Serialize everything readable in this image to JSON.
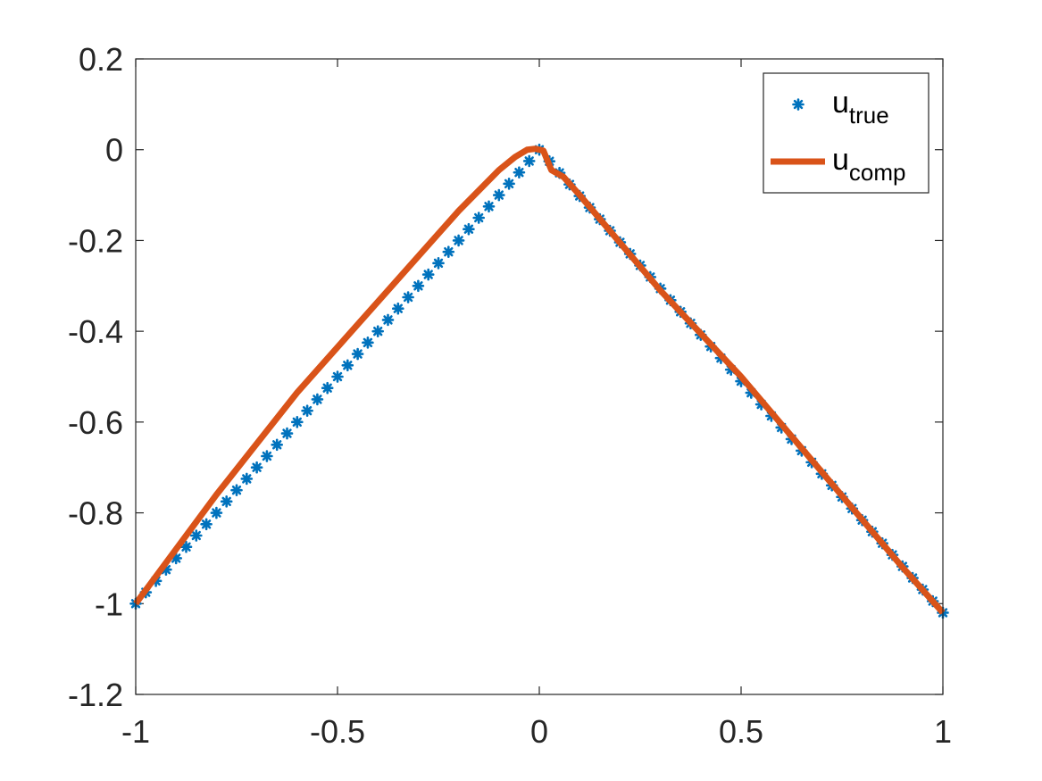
{
  "chart_data": {
    "type": "line",
    "title": "",
    "xlabel": "",
    "ylabel": "",
    "xlim": [
      -1,
      1
    ],
    "ylim": [
      -1.2,
      0.2
    ],
    "xticks": [
      "-1",
      "-0.5",
      "0",
      "0.5",
      "1"
    ],
    "xtick_values": [
      -1,
      -0.5,
      0,
      0.5,
      1
    ],
    "yticks": [
      "0.2",
      "0",
      "-0.2",
      "-0.4",
      "-0.6",
      "-0.8",
      "-1",
      "-1.2"
    ],
    "ytick_values": [
      0.2,
      0,
      -0.2,
      -0.4,
      -0.6,
      -0.8,
      -1,
      -1.2
    ],
    "grid": false,
    "legend_position": "top-right",
    "series": [
      {
        "name": "u_true",
        "legend_main": "u",
        "legend_sub": "true",
        "style": "markers",
        "marker": "asterisk",
        "color": "#0072BD",
        "function": "piecewise linear: y = x for x <= 0, y = -1.02*x for x > 0",
        "x_start": -1,
        "x_end": 1,
        "num_points": 81
      },
      {
        "name": "u_comp",
        "legend_main": "u",
        "legend_sub": "comp",
        "style": "line",
        "color": "#D95319",
        "x": [
          -1,
          -0.8,
          -0.6,
          -0.4,
          -0.2,
          -0.1,
          -0.06,
          -0.03,
          -0.01,
          0.01,
          0.03,
          0.06,
          0.1,
          0.3,
          0.5,
          0.7,
          0.9,
          1
        ],
        "y": [
          -1,
          -0.76,
          -0.535,
          -0.335,
          -0.135,
          -0.045,
          -0.016,
          0.0,
          0.002,
          -0.002,
          -0.045,
          -0.06,
          -0.1,
          -0.31,
          -0.5,
          -0.71,
          -0.92,
          -1.02
        ]
      }
    ]
  }
}
